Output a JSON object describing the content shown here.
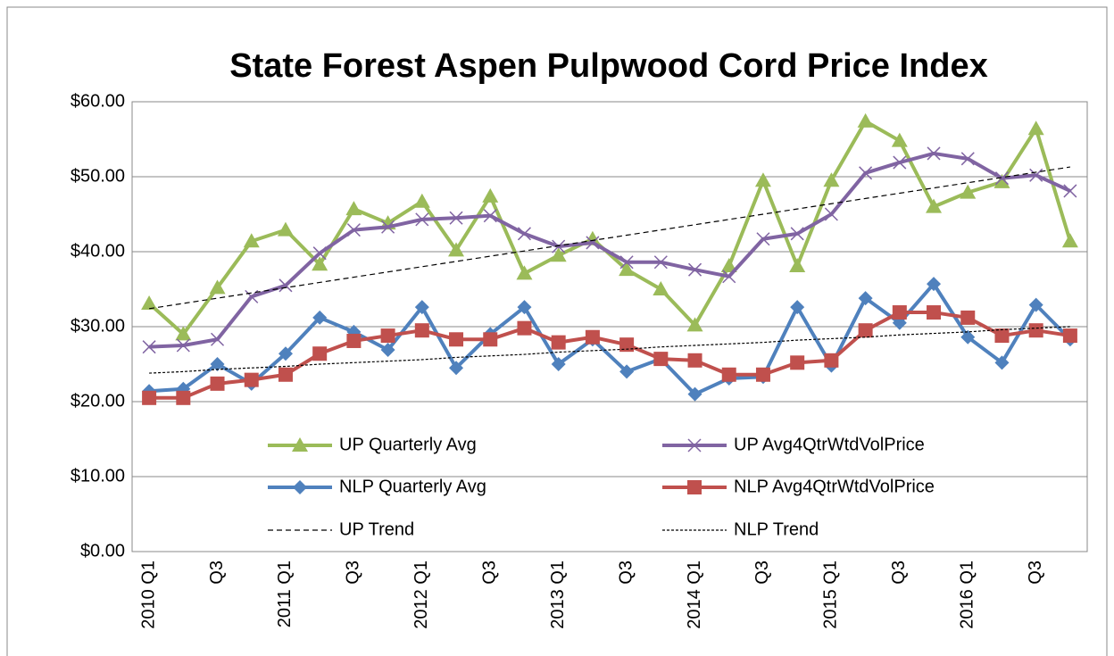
{
  "chart_data": {
    "type": "line",
    "title": "State Forest Aspen Pulpwood Cord Price Index",
    "categories": [
      "2010 Q1",
      null,
      "Q3",
      null,
      "2011 Q1",
      null,
      "Q3",
      null,
      "2012 Q1",
      null,
      "Q3",
      null,
      "2013 Q1",
      null,
      "Q3",
      null,
      "2014 Q1",
      null,
      "Q3",
      null,
      "2015 Q1",
      null,
      "Q3",
      null,
      "2016 Q1",
      null,
      "Q3",
      null
    ],
    "ylim": [
      0,
      60
    ],
    "yticks": [
      {
        "value": 0,
        "label": "$0.00"
      },
      {
        "value": 10,
        "label": "$10.00"
      },
      {
        "value": 20,
        "label": "$20.00"
      },
      {
        "value": 30,
        "label": "$30.00"
      },
      {
        "value": 40,
        "label": "$40.00"
      },
      {
        "value": 50,
        "label": "$50.00"
      },
      {
        "value": 60,
        "label": "$60.00"
      }
    ],
    "grid": true,
    "legend": "inside-bottom",
    "series": [
      {
        "name": "UP Quarterly Avg",
        "color": "#9bbb59",
        "marker": "triangle",
        "values": [
          33.1,
          29.0,
          35.2,
          41.4,
          42.9,
          38.3,
          45.7,
          43.8,
          46.7,
          40.2,
          47.4,
          37.1,
          39.5,
          41.7,
          37.6,
          35.0,
          30.2,
          38.1,
          49.5,
          38.1,
          49.5,
          57.4,
          54.8,
          46.0,
          47.9,
          49.3,
          56.4,
          41.4
        ]
      },
      {
        "name": "UP Avg4QtrWtdVolPrice",
        "color": "#8064a2",
        "marker": "x",
        "values": [
          27.3,
          27.5,
          28.3,
          34.0,
          35.5,
          39.8,
          42.9,
          43.3,
          44.3,
          44.5,
          44.8,
          42.4,
          40.7,
          41.2,
          38.6,
          38.6,
          37.6,
          36.7,
          41.7,
          42.4,
          45.0,
          50.5,
          51.9,
          53.1,
          52.4,
          49.8,
          50.2,
          48.1
        ]
      },
      {
        "name": "NLP Quarterly Avg",
        "color": "#4f81bd",
        "marker": "diamond",
        "values": [
          21.4,
          21.7,
          25.0,
          22.4,
          26.4,
          31.2,
          29.3,
          26.9,
          32.6,
          24.5,
          29.0,
          32.6,
          25.0,
          28.3,
          24.0,
          25.7,
          21.0,
          23.1,
          23.3,
          32.6,
          24.8,
          33.8,
          30.5,
          35.7,
          28.6,
          25.2,
          32.9,
          28.3
        ]
      },
      {
        "name": "NLP Avg4QtrWtdVolPrice",
        "color": "#c0504d",
        "marker": "square",
        "values": [
          20.5,
          20.5,
          22.4,
          22.9,
          23.6,
          26.4,
          28.1,
          28.8,
          29.5,
          28.3,
          28.3,
          29.8,
          27.9,
          28.6,
          27.6,
          25.7,
          25.5,
          23.6,
          23.6,
          25.2,
          25.5,
          29.5,
          31.9,
          31.9,
          31.2,
          28.8,
          29.5,
          28.8
        ]
      },
      {
        "name": "UP Trend",
        "color": "#000000",
        "dash": "6,4",
        "values": [
          32.4,
          33.1,
          33.8,
          34.5,
          35.2,
          35.9,
          36.6,
          37.3,
          38.0,
          38.7,
          39.4,
          40.1,
          40.8,
          41.5,
          42.2,
          42.9,
          43.6,
          44.3,
          45.0,
          45.7,
          46.4,
          47.1,
          47.8,
          48.5,
          49.2,
          49.9,
          50.6,
          51.3
        ]
      },
      {
        "name": "NLP Trend",
        "color": "#000000",
        "dash": "3,2",
        "values": [
          23.8,
          24.0,
          24.3,
          24.5,
          24.7,
          25.0,
          25.2,
          25.4,
          25.6,
          25.9,
          26.1,
          26.3,
          26.6,
          26.8,
          27.0,
          27.3,
          27.5,
          27.7,
          27.9,
          28.2,
          28.4,
          28.6,
          28.9,
          29.1,
          29.3,
          29.6,
          29.8,
          30.0
        ]
      }
    ]
  }
}
